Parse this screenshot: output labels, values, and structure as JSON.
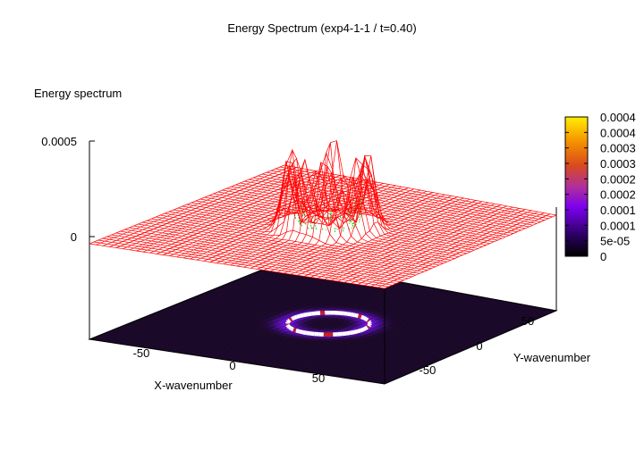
{
  "chart_data": {
    "type": "surface-3d",
    "title": "Energy Spectrum (exp4-1-1 / t=0.40)",
    "zlabel": "Energy spectrum",
    "xlabel": "X-wavenumber",
    "ylabel": "Y-wavenumber",
    "xlim": [
      -90,
      90
    ],
    "ylim": [
      -90,
      90
    ],
    "zlim": [
      0,
      0.0005
    ],
    "x_ticks": [
      "-50",
      "0",
      "50"
    ],
    "y_ticks": [
      "-50",
      "0",
      "50"
    ],
    "z_ticks": [
      "0",
      "0.0005"
    ],
    "colorbar_ticks": [
      "0",
      "5e-05",
      "0.0001",
      "0.0001",
      "0.0002",
      "0.0002",
      "0.0003",
      "0.0003",
      "0.0004",
      "0.0004"
    ],
    "colors": {
      "surface_mesh": "#ff0000",
      "underside_mesh": "#00c000",
      "palette": [
        "#000000",
        "#3a007a",
        "#8000ff",
        "#c8208c",
        "#e04000",
        "#ff8800",
        "#ffe800"
      ],
      "ring_high": "#ffffff",
      "ring_peak": "#c82020"
    },
    "ring": {
      "center": [
        0,
        0
      ],
      "radius": 22,
      "description_values": "peak energies ~0.0003-0.00045 concentrated on a ring of wavenumber radius ~22"
    },
    "grid": false,
    "colorbar_position": "right"
  }
}
